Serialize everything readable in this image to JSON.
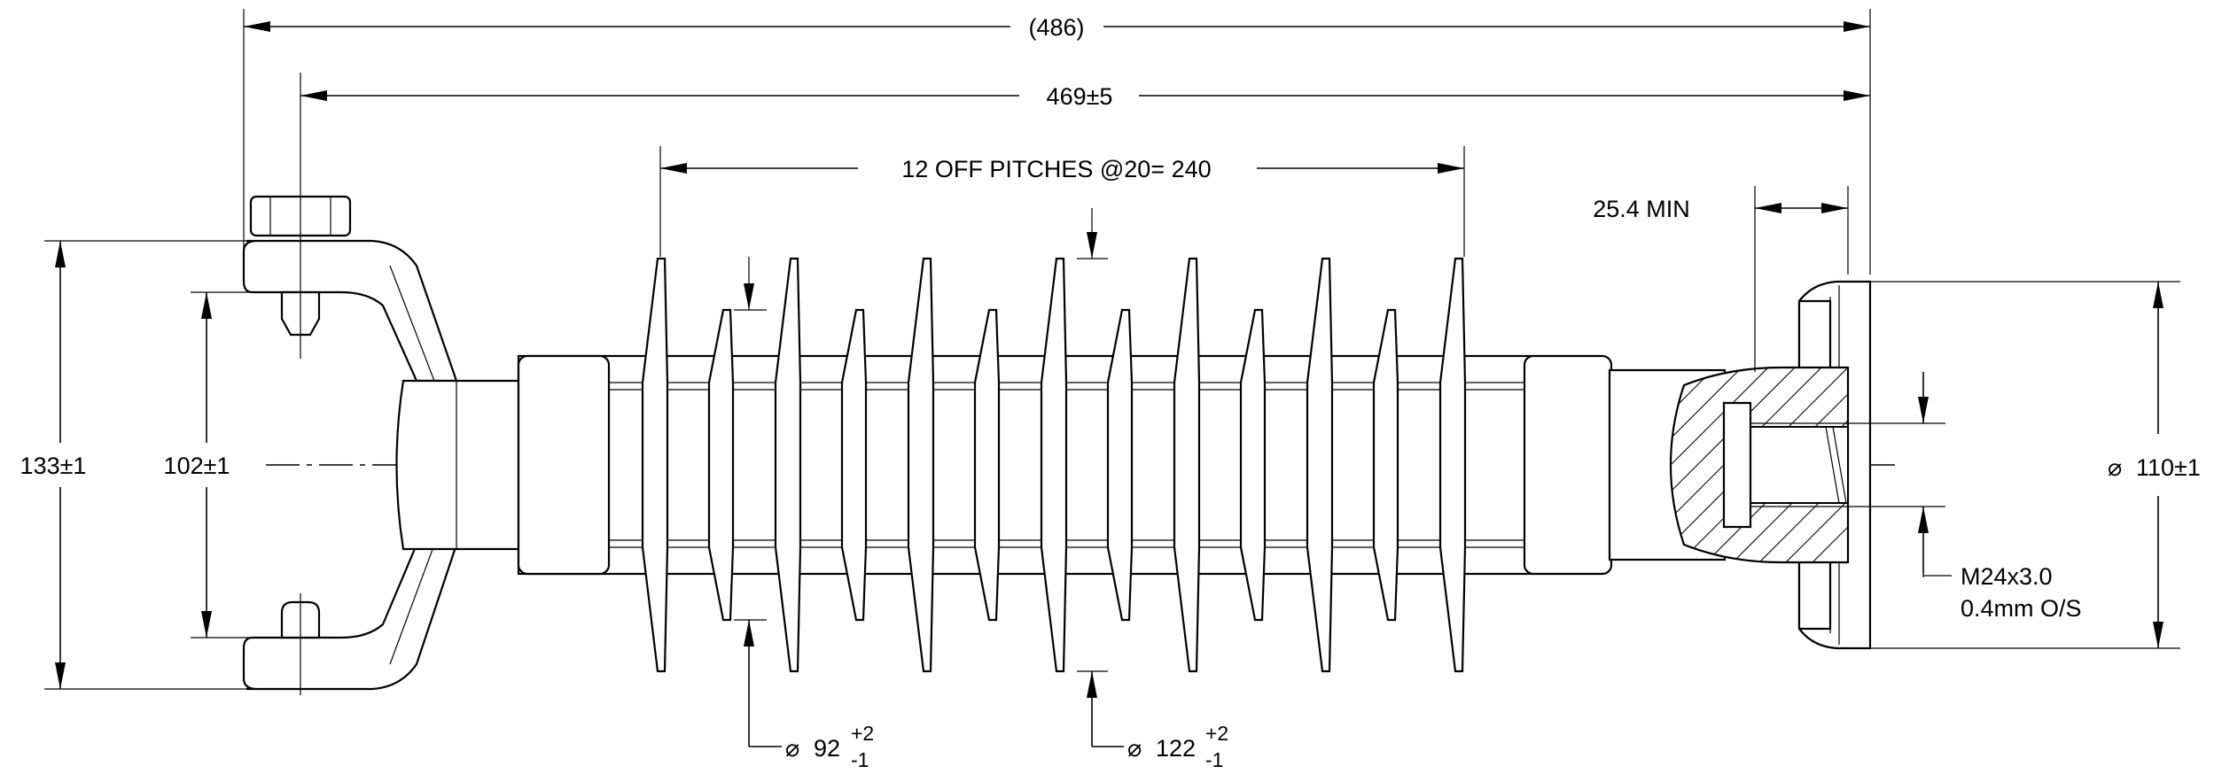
{
  "dimensions": {
    "overall_length": "(486)",
    "length": "469±5",
    "pitches": "12 OFF PITCHES @20= 240",
    "thread_depth": "25.4 MIN",
    "end_fitting_height": "133±1",
    "inner_height": "102±1",
    "flange_diameter": "110±1",
    "small_shed_diameter": "92",
    "small_shed_tol_upper": "+2",
    "small_shed_tol_lower": "-1",
    "large_shed_diameter": "122",
    "large_shed_tol_upper": "+2",
    "large_shed_tol_lower": "-1",
    "thread_spec_line1": "M24x3.0",
    "thread_spec_line2": "0.4mm O/S"
  },
  "symbols": {
    "diameter": "⌀"
  }
}
